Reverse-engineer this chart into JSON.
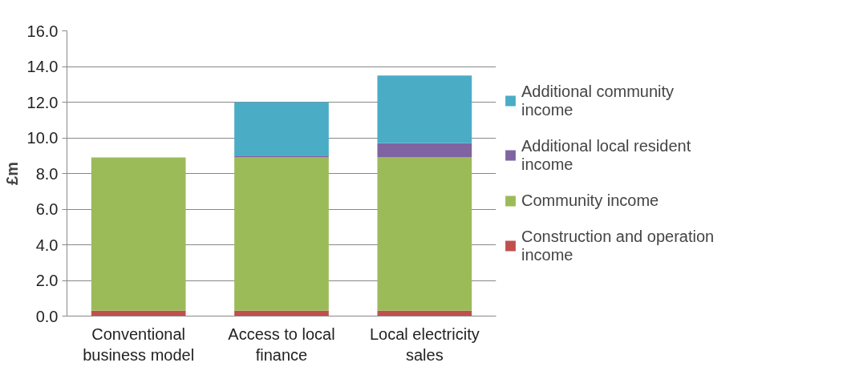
{
  "chart_data": {
    "type": "bar",
    "stacked": true,
    "ylabel": "£m",
    "categories": [
      "Conventional business model",
      "Access to local finance",
      "Local electricity sales"
    ],
    "series": [
      {
        "name": "Construction and operation income",
        "color": "#c0504d",
        "values": [
          0.3,
          0.3,
          0.3
        ]
      },
      {
        "name": "Community income",
        "color": "#9bbb59",
        "values": [
          8.6,
          8.6,
          8.6
        ]
      },
      {
        "name": "Additional local resident income",
        "color": "#8064a2",
        "values": [
          0,
          0.1,
          0.8
        ]
      },
      {
        "name": "Additional community income",
        "color": "#4bacc6",
        "values": [
          0,
          3.0,
          3.8
        ]
      }
    ],
    "ylim": [
      0,
      16
    ],
    "yticks": [
      {
        "value": 0,
        "label": "0.0"
      },
      {
        "value": 2,
        "label": "2.0"
      },
      {
        "value": 4,
        "label": "4.0"
      },
      {
        "value": 6,
        "label": "6.0"
      },
      {
        "value": 8,
        "label": "8.0"
      },
      {
        "value": 10,
        "label": "10.0"
      },
      {
        "value": 12,
        "label": "12.0"
      },
      {
        "value": 14,
        "label": "14.0"
      },
      {
        "value": 16,
        "label": "16.0"
      }
    ],
    "grid": "y",
    "legend": "right"
  }
}
